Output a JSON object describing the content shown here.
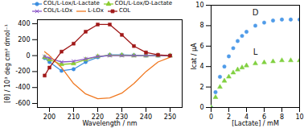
{
  "chart_data": [
    {
      "type": "line",
      "x_label": "Wavelength / nm",
      "y_label": "[θ] / 10³ deg cm² dmol⁻¹",
      "x": [
        198,
        200,
        205,
        210,
        215,
        220,
        225,
        230,
        235,
        240,
        245,
        250
      ],
      "xlim": [
        195,
        255
      ],
      "xticks": [
        200,
        210,
        220,
        230,
        240,
        250
      ],
      "ylim": [
        -650,
        450
      ],
      "yticks": [
        -600,
        -400,
        -200,
        0,
        200,
        400
      ],
      "legend": "top",
      "series": [
        {
          "name": "COL/L-Lox/L-Lactate",
          "color": "#3a8de0",
          "marker": "circle",
          "values": [
            -30,
            -80,
            -190,
            -170,
            -80,
            -20,
            10,
            10,
            5,
            0,
            0,
            0
          ]
        },
        {
          "name": "COL/L-Lox/D-Lactate",
          "color": "#8ccc30",
          "marker": "triangle",
          "values": [
            -20,
            -50,
            -110,
            -100,
            -50,
            -10,
            5,
            5,
            0,
            0,
            0,
            0
          ]
        },
        {
          "name": "COL/L-LOx",
          "color": "#8a55c8",
          "marker": "times",
          "values": [
            -10,
            -30,
            -80,
            -70,
            -40,
            -10,
            0,
            0,
            0,
            0,
            0,
            0
          ]
        },
        {
          "name": "L-LOx",
          "color": "#f07820",
          "marker": "none",
          "values": [
            50,
            0,
            -150,
            -350,
            -480,
            -540,
            -530,
            -470,
            -350,
            -200,
            -80,
            -20
          ]
        },
        {
          "name": "COL",
          "color": "#a01818",
          "marker": "square",
          "values": [
            -250,
            -150,
            50,
            150,
            300,
            390,
            390,
            260,
            120,
            40,
            10,
            0
          ]
        }
      ]
    },
    {
      "type": "scatter",
      "x_label": "[Lactate] / mM",
      "y_label": "Icat / μA",
      "x": [
        0,
        0.5,
        1,
        1.5,
        2,
        2.5,
        3,
        3.5,
        4,
        5,
        6,
        7,
        8,
        9,
        10
      ],
      "xlim": [
        0,
        10
      ],
      "xticks": [
        0,
        2,
        4,
        6,
        8,
        10
      ],
      "ylim": [
        0,
        10
      ],
      "yticks": [
        0,
        2,
        4,
        6,
        8,
        10
      ],
      "series": [
        {
          "name": "D",
          "color": "#4f9be8",
          "marker": "circle",
          "values": [
            0,
            1.5,
            3,
            4,
            5,
            5.8,
            6.5,
            7,
            7.4,
            8,
            8.3,
            8.5,
            8.6,
            8.6,
            8.6
          ]
        },
        {
          "name": "L",
          "color": "#80d040",
          "marker": "triangle",
          "values": [
            0,
            1,
            2,
            2.6,
            3,
            3.4,
            3.7,
            3.9,
            4.1,
            4.3,
            4.4,
            4.5,
            4.6,
            4.6,
            4.6
          ]
        }
      ],
      "annotations": [
        {
          "text": "D",
          "x": 5,
          "y": 9.3
        },
        {
          "text": "L",
          "x": 5,
          "y": 5.4
        }
      ]
    }
  ]
}
